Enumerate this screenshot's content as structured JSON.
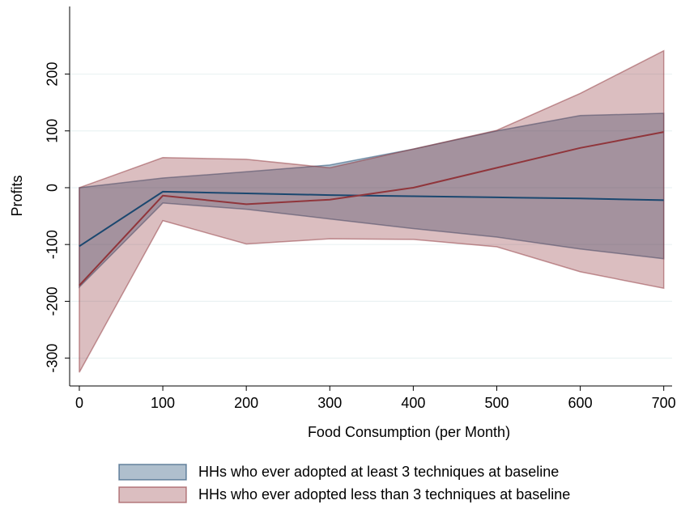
{
  "chart_data": {
    "type": "line",
    "x_label": "Food Consumption (per Month)",
    "y_label": "Profits",
    "x": [
      0,
      100,
      200,
      300,
      400,
      500,
      600,
      700
    ],
    "xlim": [
      -11.6,
      710
    ],
    "xticks": [
      0,
      100,
      200,
      300,
      400,
      500,
      600,
      700
    ],
    "ylim": [
      -349,
      319
    ],
    "yticks": [
      -300,
      -200,
      -100,
      0,
      100,
      200
    ],
    "grid": true,
    "legend": "bottom",
    "series": [
      {
        "name": "HHs who ever adopted at least 3 techniques at baseline",
        "color": "#1a476f",
        "values": [
          -103,
          -7,
          -10,
          -13,
          -15,
          -17,
          -19,
          -22
        ],
        "upper": [
          0,
          17,
          28,
          40,
          68,
          100,
          127,
          131
        ],
        "lower": [
          -175,
          -27,
          -38,
          -55,
          -72,
          -87,
          -108,
          -125
        ]
      },
      {
        "name": "HHs who ever adopted less than 3 techniques at baseline",
        "color": "#90353b",
        "values": [
          -172,
          -14,
          -29,
          -21,
          0,
          35,
          70,
          98
        ],
        "upper": [
          0,
          53,
          50,
          35,
          68,
          101,
          166,
          241
        ],
        "lower": [
          -325,
          -58,
          -99,
          -90,
          -91,
          -104,
          -148,
          -177
        ]
      }
    ]
  }
}
